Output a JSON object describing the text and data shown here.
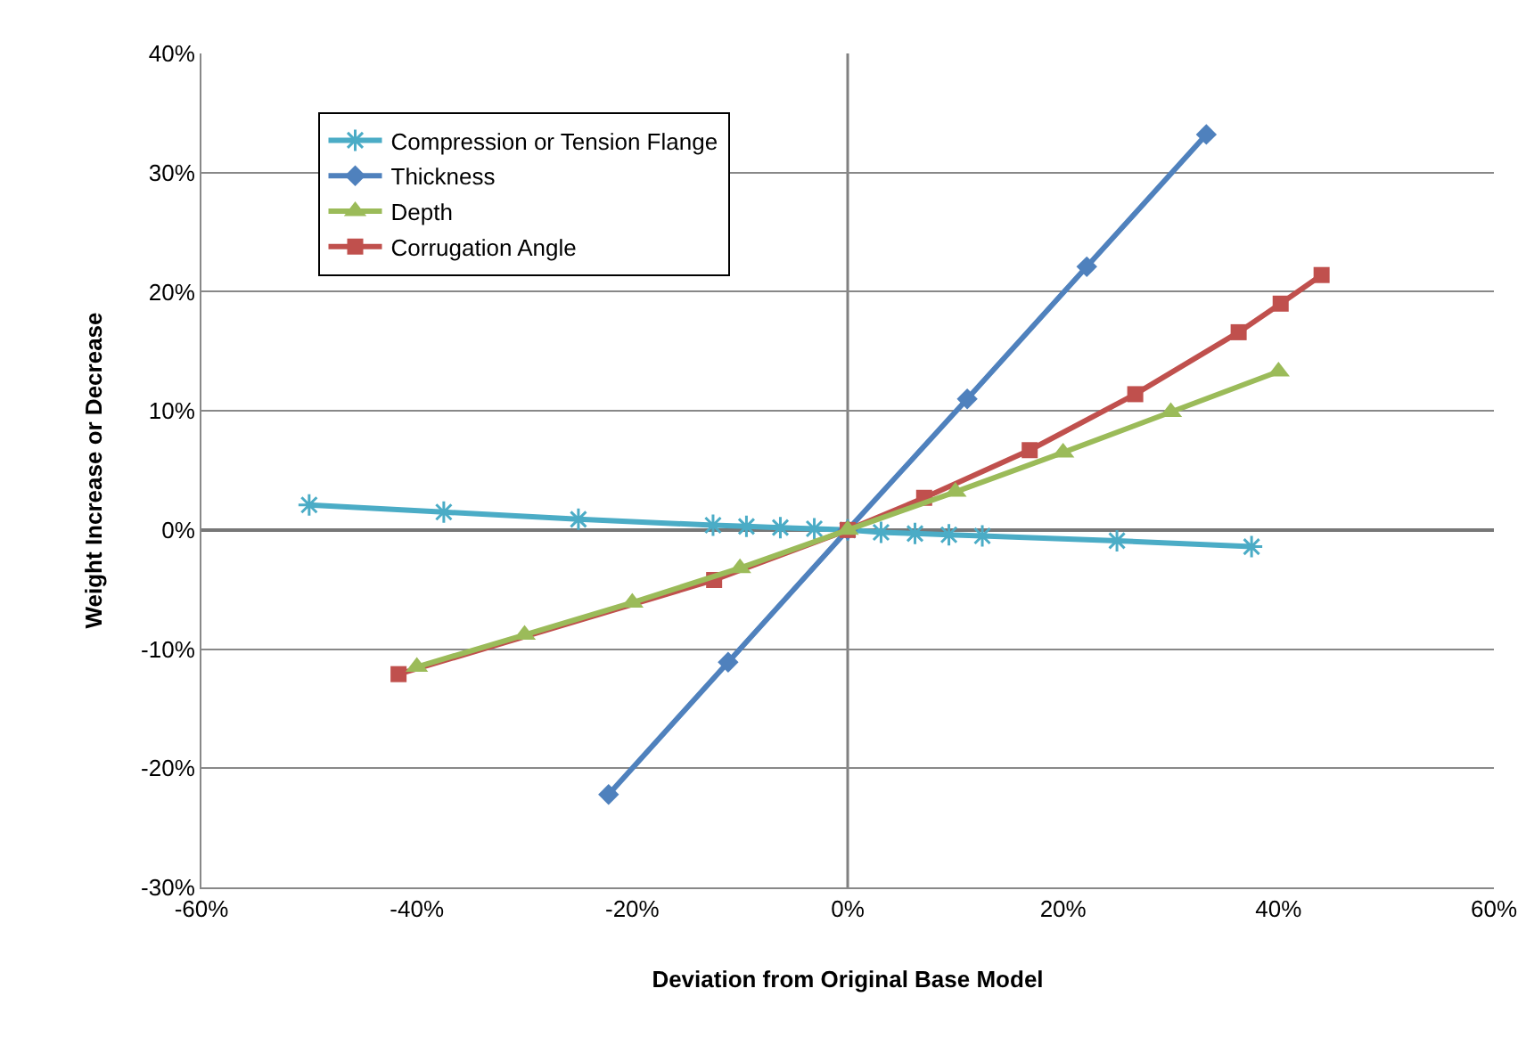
{
  "chart_data": {
    "type": "line",
    "xlabel": "Deviation from Original Base Model",
    "ylabel": "Weight Increase or Decrease",
    "series": [
      {
        "name": "Compression or Tension Flange",
        "color": "#4bacc6",
        "marker": "cross",
        "x": [
          -50,
          -37.5,
          -25,
          -12.5,
          -9.4,
          -6.25,
          -3.1,
          0,
          3.1,
          6.25,
          9.4,
          12.5,
          25,
          37.5
        ],
        "values": [
          2.1,
          1.5,
          0.9,
          0.4,
          0.3,
          0.2,
          0.1,
          0,
          -0.2,
          -0.3,
          -0.4,
          -0.5,
          -0.9,
          -1.4
        ]
      },
      {
        "name": "Thickness",
        "color": "#4f81bd",
        "marker": "diamond",
        "x": [
          -22.2,
          -11.1,
          0,
          11.1,
          22.2,
          33.3
        ],
        "values": [
          -22.2,
          -11.1,
          0,
          11.0,
          22.1,
          33.2
        ]
      },
      {
        "name": "Depth",
        "color": "#9bbb59",
        "marker": "triangle",
        "x": [
          -40,
          -30,
          -20,
          -10,
          0,
          10,
          20,
          30,
          40
        ],
        "values": [
          -11.5,
          -8.8,
          -6.1,
          -3.2,
          0,
          3.2,
          6.5,
          9.9,
          13.3
        ]
      },
      {
        "name": "Corrugation Angle",
        "color": "#c0504d",
        "marker": "square",
        "x": [
          -41.7,
          -12.4,
          0,
          7.1,
          16.9,
          26.7,
          36.3,
          40.2,
          44
        ],
        "values": [
          -12.1,
          -4.2,
          0,
          2.7,
          6.7,
          11.4,
          16.6,
          19.0,
          21.4
        ]
      }
    ],
    "xlim": [
      -60,
      60
    ],
    "xticks": [
      {
        "value": -60,
        "label": "-60%"
      },
      {
        "value": -40,
        "label": "-40%"
      },
      {
        "value": -20,
        "label": "-20%"
      },
      {
        "value": 0,
        "label": "0%"
      },
      {
        "value": 20,
        "label": "20%"
      },
      {
        "value": 40,
        "label": "40%"
      },
      {
        "value": 60,
        "label": "60%"
      }
    ],
    "ylim": [
      -30,
      40
    ],
    "yticks": [
      {
        "value": -30,
        "label": "-30%"
      },
      {
        "value": -20,
        "label": "-20%"
      },
      {
        "value": -10,
        "label": "-10%"
      },
      {
        "value": 0,
        "label": "0%"
      },
      {
        "value": 10,
        "label": "10%"
      },
      {
        "value": 20,
        "label": "20%"
      },
      {
        "value": 30,
        "label": "30%"
      },
      {
        "value": 40,
        "label": "40%"
      }
    ],
    "ref_lines": [
      {
        "axis": "x",
        "value": 0,
        "color": "#808080"
      }
    ],
    "grid": "y",
    "legend": "top left",
    "line_style": "solid"
  }
}
